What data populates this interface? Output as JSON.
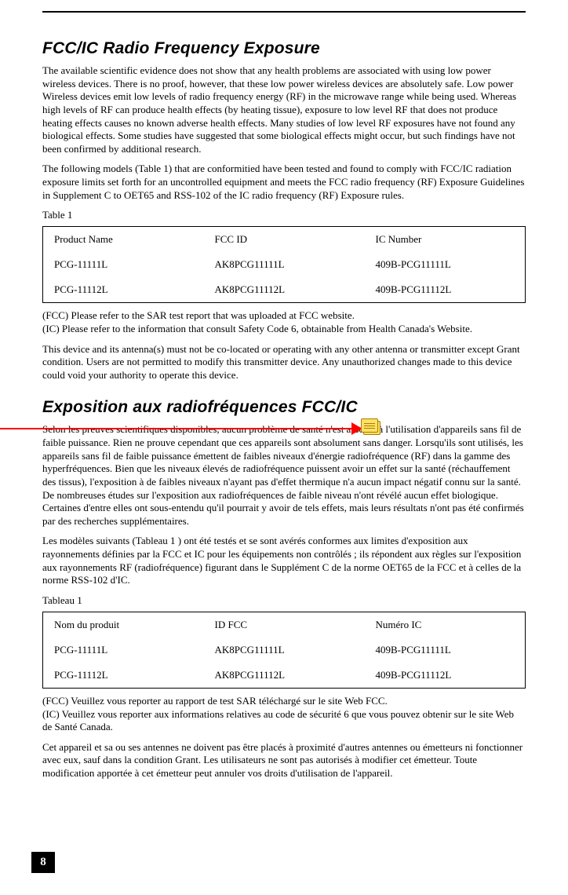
{
  "page_number": "8",
  "section1": {
    "heading": "FCC/IC Radio Frequency Exposure",
    "p1": "The available scientific evidence does not show that any health problems are associated with using low power wireless devices. There is no proof, however, that these low power wireless devices are absolutely safe. Low power Wireless devices emit low levels of radio frequency energy (RF) in the microwave range while being used. Whereas high levels of RF can produce health effects (by heating tissue), exposure to low level RF that does not produce heating effects causes no known adverse health effects. Many studies of low level RF exposures have not found any biological effects. Some studies have suggested that some biological effects might occur, but such findings have not been confirmed by additional research.",
    "p2": "The following models (Table 1) that are conformitied have been tested and found to comply with FCC/IC radiation exposure limits set forth for an uncontrolled equipment and meets the FCC radio frequency (RF) Exposure Guidelines in Supplement C to OET65 and RSS-102 of the IC radio frequency (RF) Exposure rules.",
    "table_caption": "Table 1",
    "table": {
      "headers": [
        "Product Name",
        "FCC ID",
        "IC Number"
      ],
      "rows": [
        [
          "PCG-11111L",
          "AK8PCG11111L",
          "409B-PCG11111L"
        ],
        [
          "PCG-11112L",
          "AK8PCG11112L",
          "409B-PCG11112L"
        ]
      ]
    },
    "p3a": "(FCC) Please refer to the SAR test report that was uploaded at FCC website.",
    "p3b": "(IC) Please refer to the information that consult Safety Code 6, obtainable from Health Canada's Website.",
    "p4": "This device and its antenna(s) must not be co-located or operating with any other antenna or transmitter except Grant condition. Users are not permitted to modify this transmitter device. Any unauthorized changes made to this device could void your authority to operate this device."
  },
  "section2": {
    "heading": "Exposition aux radiofréquences FCC/IC",
    "p1": "Selon les preuves scientifiques disponibles, aucun problème de santé n'est associé à l'utilisation d'appareils sans fil de faible puissance. Rien ne prouve cependant que ces appareils sont absolument sans danger. Lorsqu'ils sont utilisés, les appareils sans fil de faible puissance émettent de faibles niveaux d'énergie radiofréquence (RF) dans la gamme des hyperfréquences. Bien que les niveaux élevés de radiofréquence puissent avoir un effet sur la santé (réchauffement des tissus), l'exposition à de faibles niveaux n'ayant pas d'effet thermique n'a aucun impact négatif connu sur la santé. De nombreuses études sur l'exposition aux radiofréquences de faible niveau n'ont révélé aucun effet biologique. Certaines d'entre elles ont sous-entendu qu'il pourrait y avoir de tels effets, mais leurs résultats n'ont pas été confirmés par des recherches supplémentaires.",
    "p2": "Les modèles suivants (Tableau 1 ) ont été testés et se sont avérés conformes aux limites d'exposition aux rayonnements définies par la FCC et IC pour les équipements non contrôlés ; ils répondent aux règles sur l'exposition aux rayonnements RF (radiofréquence) figurant dans le Supplément C de la norme OET65 de la FCC et à celles de la norme RSS-102 d'IC.",
    "table_caption": "Tableau 1",
    "table": {
      "headers": [
        "Nom du produit",
        "ID FCC",
        "Numéro IC"
      ],
      "rows": [
        [
          "PCG-11111L",
          "AK8PCG11111L",
          "409B-PCG11111L"
        ],
        [
          "PCG-11112L",
          "AK8PCG11112L",
          "409B-PCG11112L"
        ]
      ]
    },
    "p3a": "(FCC) Veuillez vous reporter au rapport de test SAR téléchargé sur le site Web FCC.",
    "p3b": "(IC) Veuillez vous reporter aux informations relatives au code de sécurité 6 que vous pouvez obtenir sur le site Web de Santé Canada.",
    "p4": "Cet appareil et sa ou ses antennes ne doivent pas être placés à proximité d'autres antennes ou émetteurs ni fonctionner avec eux, sauf dans la condition Grant. Les utilisateurs ne sont pas autorisés à modifier cet émetteur. Toute modification apportée à cet émetteur peut annuler vos droits d'utilisation de l'appareil."
  },
  "annotation": {
    "color": "#ff0000",
    "note_fill": "#ffe066",
    "note_border": "#a87d00"
  }
}
